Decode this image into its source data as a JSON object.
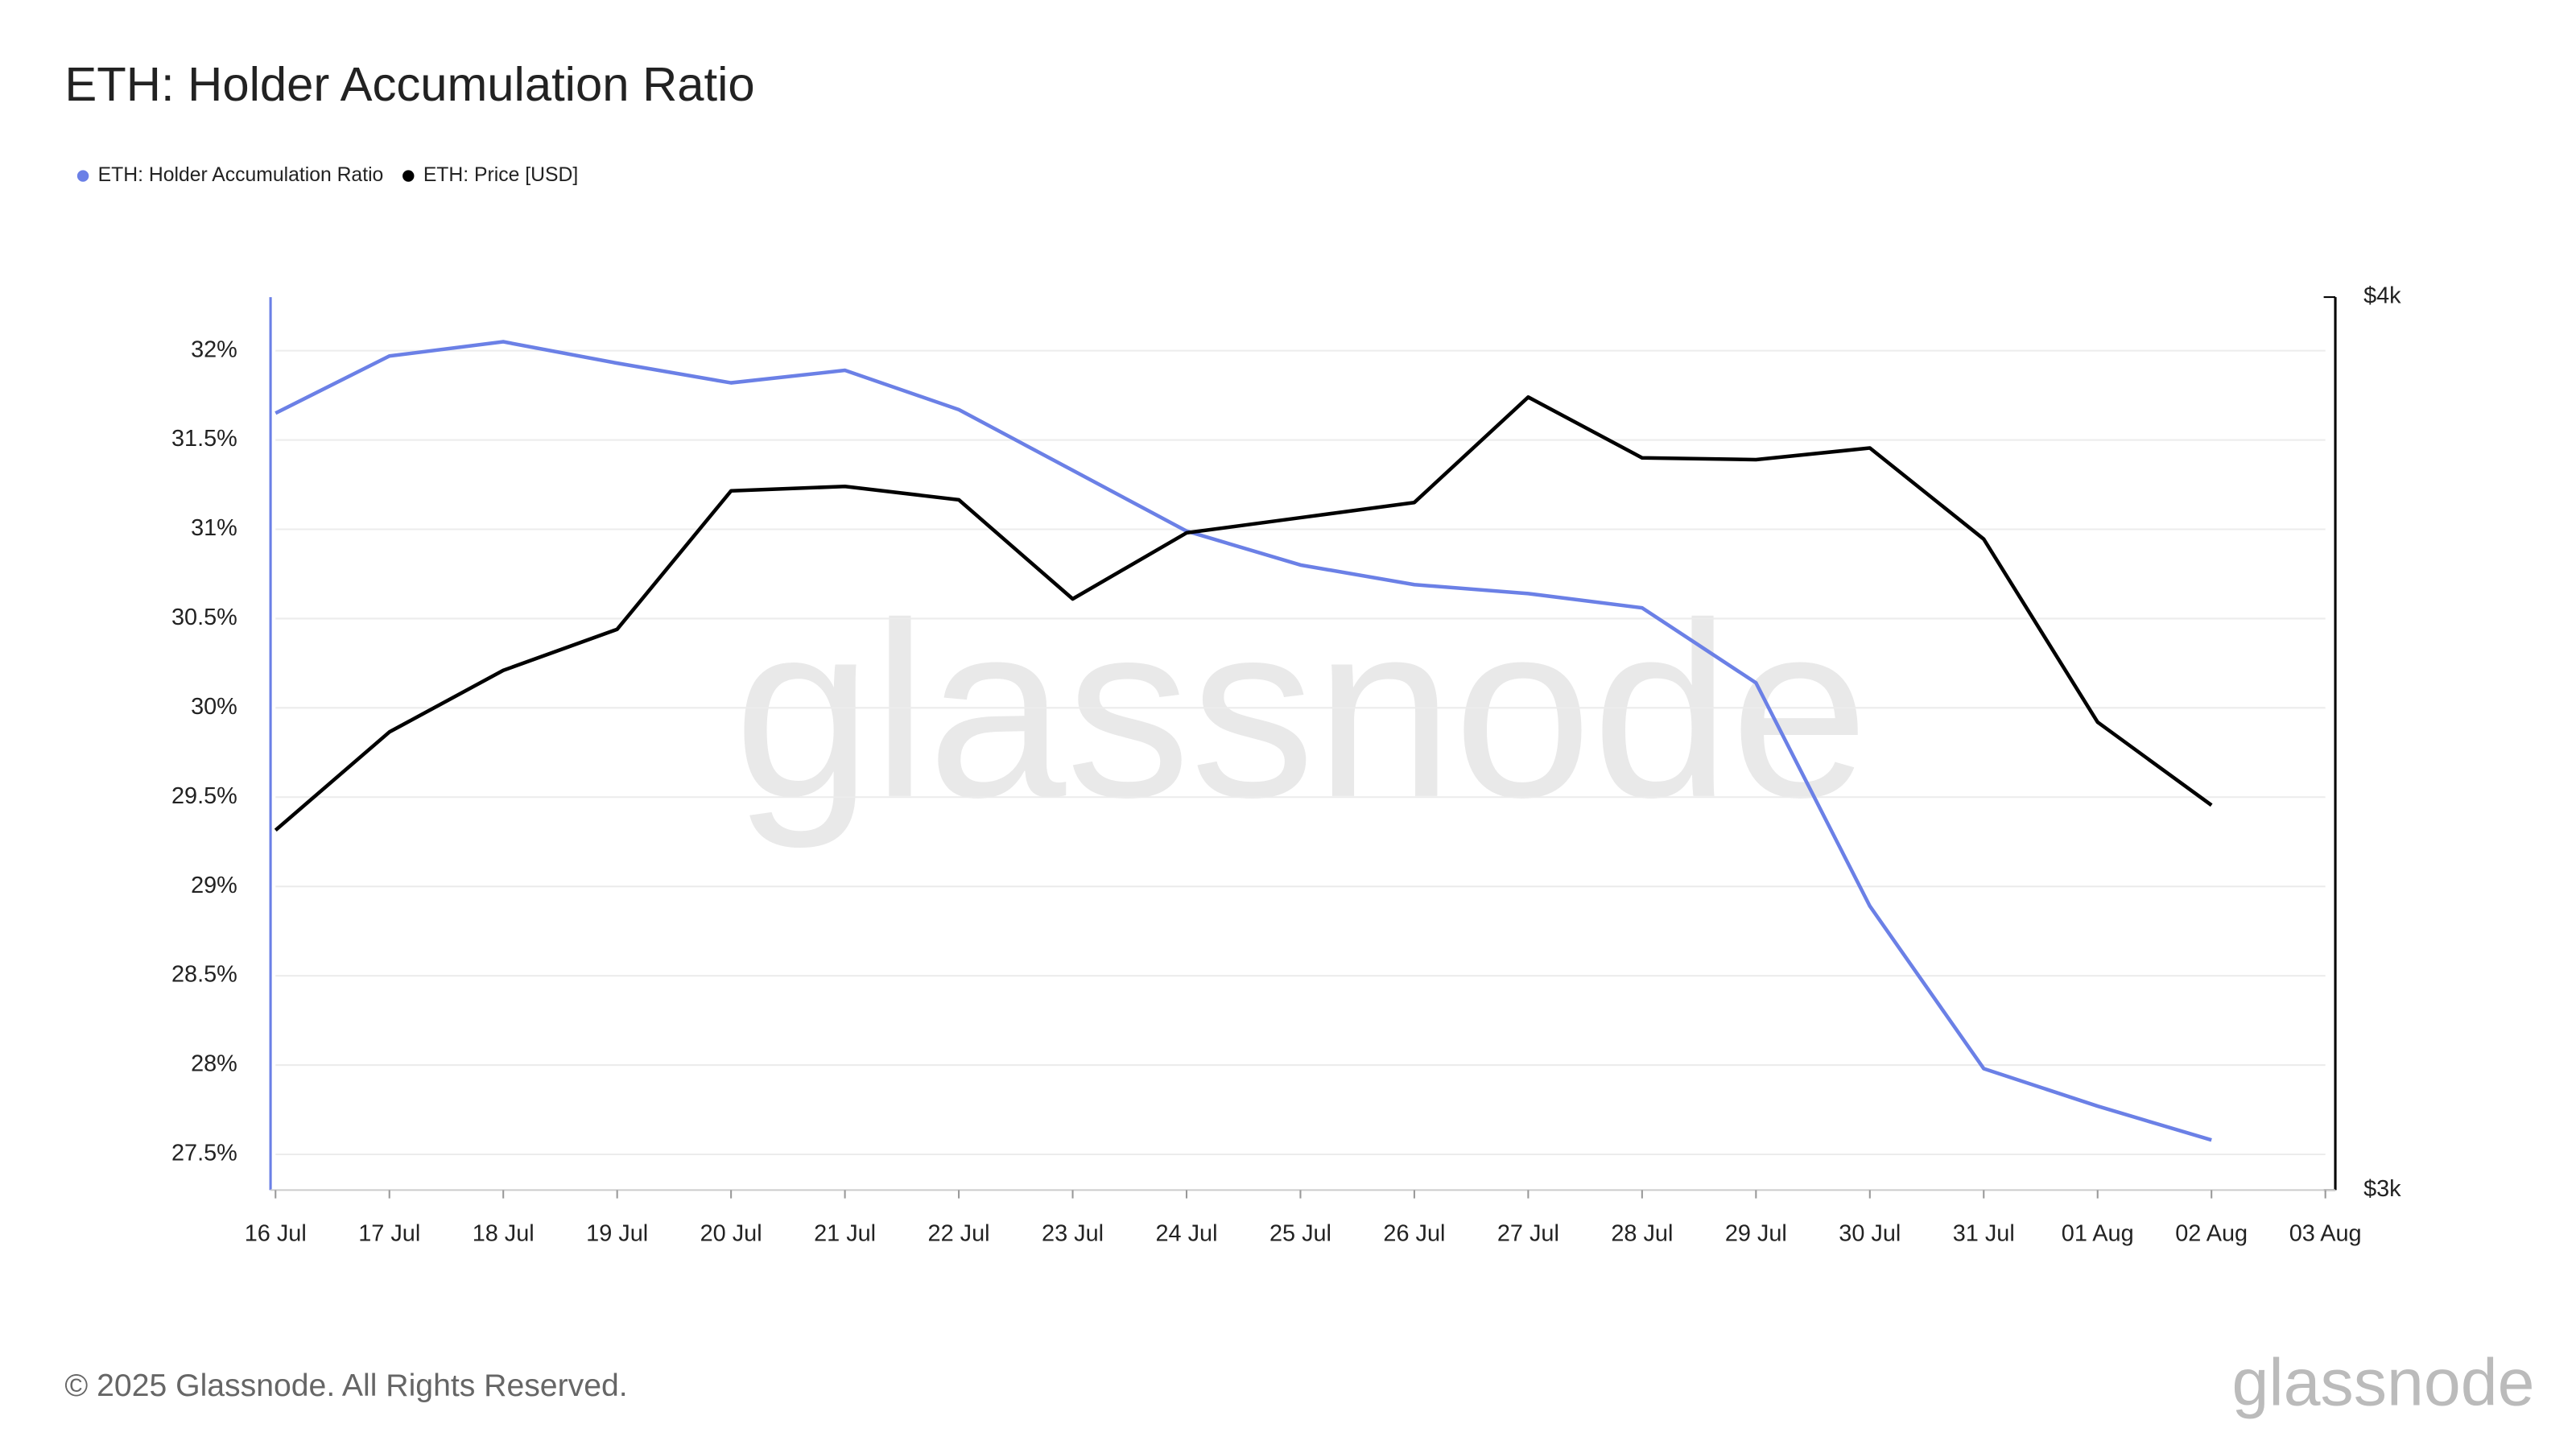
{
  "chart_data": {
    "type": "line",
    "title": "ETH: Holder Accumulation Ratio",
    "watermark": "glassnode",
    "footer": "© 2025 Glassnode. All Rights Reserved.",
    "logo": "glassnode",
    "categories": [
      "16 Jul",
      "17 Jul",
      "18 Jul",
      "19 Jul",
      "20 Jul",
      "21 Jul",
      "22 Jul",
      "23 Jul",
      "24 Jul",
      "25 Jul",
      "26 Jul",
      "27 Jul",
      "28 Jul",
      "29 Jul",
      "30 Jul",
      "31 Jul",
      "01 Aug",
      "02 Aug",
      "03 Aug"
    ],
    "series": [
      {
        "name": "ETH: Holder Accumulation Ratio",
        "color": "#6b80e6",
        "axis": "y",
        "values": [
          31.65,
          31.97,
          32.05,
          31.93,
          31.82,
          31.89,
          31.67,
          31.33,
          30.99,
          30.8,
          30.69,
          30.64,
          30.56,
          30.14,
          28.89,
          27.98,
          27.77,
          27.58,
          null
        ]
      },
      {
        "name": "ETH: Price [USD]",
        "color": "#000000",
        "axis": "y2",
        "values": [
          3403,
          3513,
          3582,
          3628,
          3783,
          3788,
          3773,
          3662,
          3736,
          3753,
          3770,
          3888,
          3820,
          3818,
          3831,
          3729,
          3524,
          3431,
          null
        ]
      }
    ],
    "ylim": [
      27.3,
      32.3
    ],
    "yticks": [
      {
        "value": 27.5,
        "label": "27.5%"
      },
      {
        "value": 28,
        "label": "28%"
      },
      {
        "value": 28.5,
        "label": "28.5%"
      },
      {
        "value": 29,
        "label": "29%"
      },
      {
        "value": 29.5,
        "label": "29.5%"
      },
      {
        "value": 30,
        "label": "30%"
      },
      {
        "value": 30.5,
        "label": "30.5%"
      },
      {
        "value": 31,
        "label": "31%"
      },
      {
        "value": 31.5,
        "label": "31.5%"
      },
      {
        "value": 32,
        "label": "32%"
      }
    ],
    "y2lim": [
      3000,
      4000
    ],
    "y2ticks": [
      {
        "value": 3000,
        "label": "$3k"
      },
      {
        "value": 4000,
        "label": "$4k"
      }
    ],
    "grid": true
  }
}
